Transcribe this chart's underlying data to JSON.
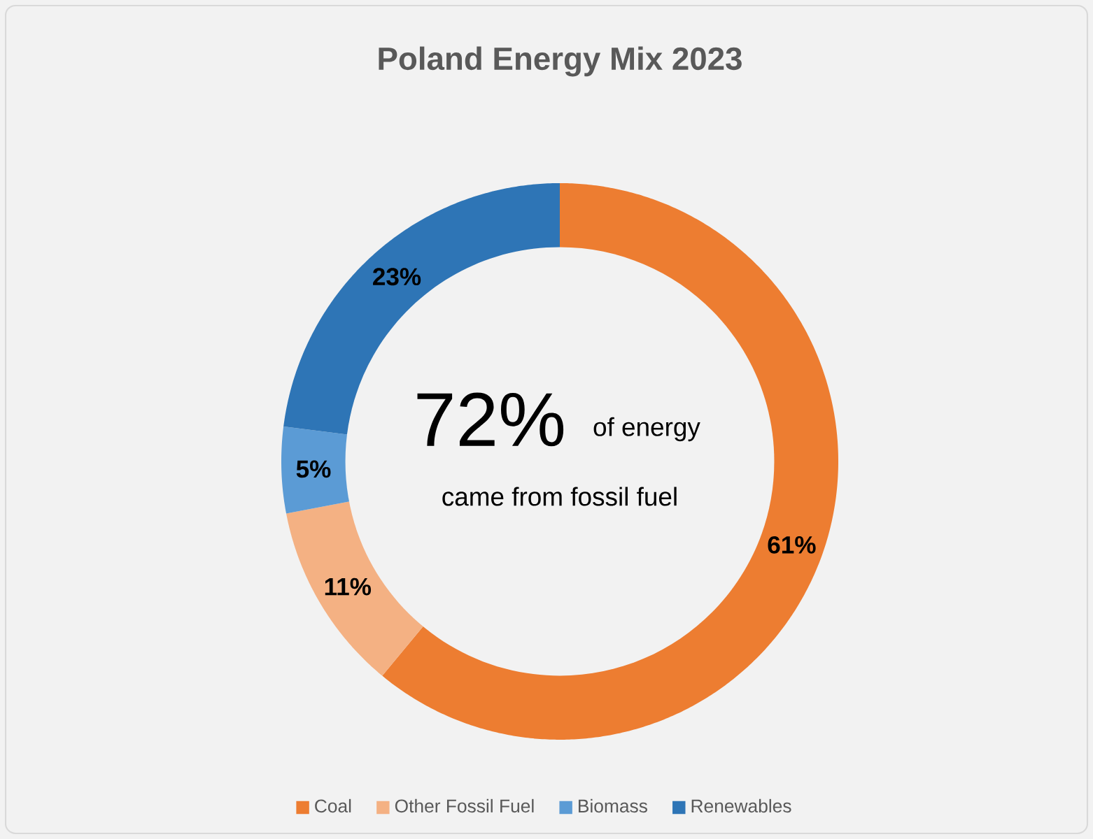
{
  "chart_data": {
    "type": "donut",
    "title": "Poland Energy Mix 2023",
    "categories": [
      "Coal",
      "Other Fossil Fuel",
      "Biomass",
      "Renewables"
    ],
    "values": [
      61,
      11,
      5,
      23
    ],
    "colors": [
      "#ed7d31",
      "#f4b183",
      "#5b9bd5",
      "#2e75b6"
    ],
    "value_labels": [
      "61%",
      "11%",
      "5%",
      "23%"
    ],
    "annotations": [
      "72%",
      "of energy",
      "came from fossil fuel"
    ],
    "legend": "bottom"
  }
}
